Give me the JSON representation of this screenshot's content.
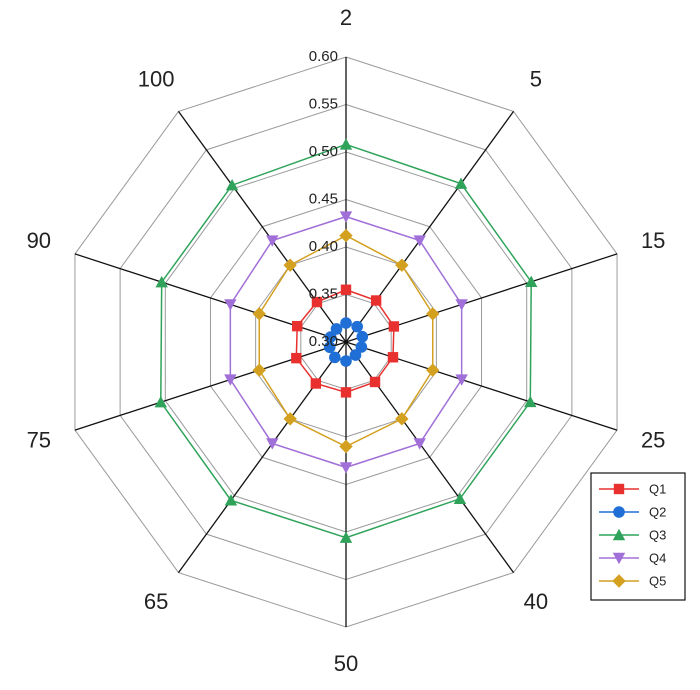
{
  "chart_data": {
    "type": "radar",
    "categories": [
      "2",
      "5",
      "15",
      "25",
      "40",
      "50",
      "65",
      "75",
      "90",
      "100"
    ],
    "rlim": [
      0.3,
      0.6
    ],
    "r_ticks": [
      "0.30",
      "0.35",
      "0.40",
      "0.45",
      "0.50",
      "0.55",
      "0.60"
    ],
    "grid": true,
    "legend_position": "bottom-right",
    "series": [
      {
        "name": "Q1",
        "color": "#e8312f",
        "marker": "square",
        "values": [
          0.355,
          0.354,
          0.353,
          0.352,
          0.352,
          0.353,
          0.354,
          0.355,
          0.354,
          0.352
        ]
      },
      {
        "name": "Q2",
        "color": "#1f6fd6",
        "marker": "circle",
        "values": [
          0.32,
          0.32,
          0.318,
          0.317,
          0.317,
          0.32,
          0.32,
          0.318,
          0.317,
          0.317
        ]
      },
      {
        "name": "Q3",
        "color": "#2fa35a",
        "marker": "triangle-up",
        "values": [
          0.508,
          0.506,
          0.505,
          0.504,
          0.504,
          0.506,
          0.506,
          0.505,
          0.504,
          0.504
        ]
      },
      {
        "name": "Q4",
        "color": "#a070d8",
        "marker": "triangle-down",
        "values": [
          0.432,
          0.432,
          0.428,
          0.428,
          0.432,
          0.432,
          0.432,
          0.428,
          0.428,
          0.432
        ]
      },
      {
        "name": "Q5",
        "color": "#d4a020",
        "marker": "diamond",
        "values": [
          0.412,
          0.4,
          0.396,
          0.396,
          0.4,
          0.41,
          0.4,
          0.396,
          0.396,
          0.4
        ]
      }
    ]
  }
}
